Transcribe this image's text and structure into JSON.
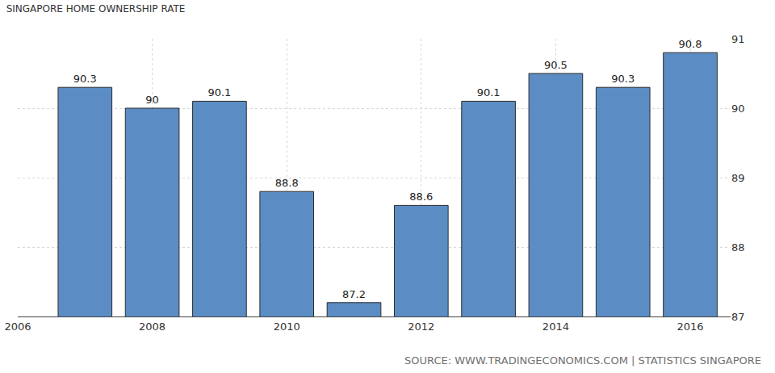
{
  "chart_data": {
    "type": "bar",
    "title": "SINGAPORE HOME OWNERSHIP RATE",
    "x": [
      2007,
      2008,
      2009,
      2010,
      2011,
      2012,
      2013,
      2014,
      2015,
      2016
    ],
    "values": [
      90.3,
      90,
      90.1,
      88.8,
      87.2,
      88.6,
      90.1,
      90.5,
      90.3,
      90.8
    ],
    "color": "#5b8dc4",
    "xlim": [
      2006,
      2016.6
    ],
    "xticks": [
      2006,
      2008,
      2010,
      2012,
      2014,
      2016
    ],
    "ylim": [
      87,
      91
    ],
    "yticks": [
      87,
      88,
      89,
      90,
      91
    ],
    "grid": true,
    "data_labels": true,
    "annotations": [
      "SOURCE: WWW.TRADINGECONOMICS.COM | STATISTICS SINGAPORE"
    ]
  }
}
